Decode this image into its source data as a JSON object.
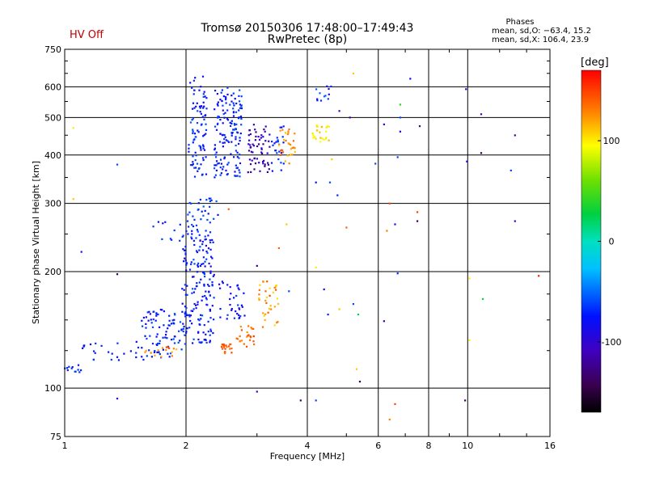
{
  "header": {
    "hv_status": "HV Off",
    "title_line1": "Tromsø 20150306 17:48:00–17:49:43",
    "title_line2": "RwPretec (8p)",
    "phases_heading": "Phases",
    "phases_O": "mean, sd,O: −63.4, 15.2",
    "phases_X": "mean, sd,X: 106.4, 23.9"
  },
  "chart_data": {
    "type": "scatter",
    "title": "Tromsø 20150306 17:48:00–17:49:43",
    "subtitle": "RwPretec (8p)",
    "xlabel": "Frequency [MHz]",
    "ylabel": "Stationary phase Virtual Height [km]",
    "x_scale": "log",
    "y_scale": "log",
    "xlim": [
      1,
      16
    ],
    "ylim": [
      75,
      750
    ],
    "x_ticks": [
      1,
      2,
      4,
      6,
      8,
      10,
      16
    ],
    "y_ticks": [
      75,
      100,
      200,
      300,
      400,
      500,
      600,
      750
    ],
    "color_scale": {
      "label": "[deg]",
      "range": [
        -170,
        170
      ],
      "ticks": [
        100,
        0,
        -100
      ],
      "colormap": "rainbow (black-purple-blue-cyan-green-yellow-red)"
    },
    "clusters": [
      {
        "x_range": [
          2.03,
          2.25
        ],
        "y_range": [
          350,
          640
        ],
        "phase_range": [
          -90,
          -55
        ],
        "count": 90
      },
      {
        "x_range": [
          2.35,
          2.75
        ],
        "y_range": [
          350,
          600
        ],
        "phase_range": [
          -90,
          -55
        ],
        "count": 150
      },
      {
        "x_range": [
          2.85,
          3.25
        ],
        "y_range": [
          360,
          480
        ],
        "phase_range": [
          -130,
          -90
        ],
        "count": 60
      },
      {
        "x_range": [
          3.25,
          3.5
        ],
        "y_range": [
          360,
          480
        ],
        "phase_range": [
          -80,
          -60
        ],
        "count": 25
      },
      {
        "x_range": [
          3.4,
          3.75
        ],
        "y_range": [
          380,
          470
        ],
        "phase_range": [
          110,
          145
        ],
        "count": 30
      },
      {
        "x_range": [
          4.1,
          4.55
        ],
        "y_range": [
          420,
          480
        ],
        "phase_range": [
          90,
          115
        ],
        "count": 25
      },
      {
        "x_range": [
          4.2,
          4.6
        ],
        "y_range": [
          550,
          620
        ],
        "phase_range": [
          -90,
          -50
        ],
        "count": 12
      },
      {
        "x_range": [
          1.0,
          1.1
        ],
        "y_range": [
          110,
          115
        ],
        "phase_range": [
          -80,
          -60
        ],
        "count": 12
      },
      {
        "x_range": [
          1.1,
          1.6
        ],
        "y_range": [
          118,
          132
        ],
        "phase_range": [
          -80,
          -60
        ],
        "count": 25
      },
      {
        "x_range": [
          1.55,
          1.95
        ],
        "y_range": [
          120,
          160
        ],
        "phase_range": [
          -90,
          -55
        ],
        "count": 80
      },
      {
        "x_range": [
          1.95,
          2.35
        ],
        "y_range": [
          130,
          250
        ],
        "phase_range": [
          -90,
          -55
        ],
        "count": 180
      },
      {
        "x_range": [
          2.0,
          2.4
        ],
        "y_range": [
          250,
          310
        ],
        "phase_range": [
          -80,
          -55
        ],
        "count": 40
      },
      {
        "x_range": [
          1.65,
          1.95
        ],
        "y_range": [
          240,
          270
        ],
        "phase_range": [
          -80,
          -60
        ],
        "count": 10
      },
      {
        "x_range": [
          2.4,
          2.8
        ],
        "y_range": [
          150,
          190
        ],
        "phase_range": [
          -100,
          -60
        ],
        "count": 35
      },
      {
        "x_range": [
          2.45,
          2.6
        ],
        "y_range": [
          122,
          130
        ],
        "phase_range": [
          130,
          150
        ],
        "count": 20
      },
      {
        "x_range": [
          2.65,
          2.95
        ],
        "y_range": [
          128,
          145
        ],
        "phase_range": [
          120,
          150
        ],
        "count": 25
      },
      {
        "x_range": [
          3.0,
          3.4
        ],
        "y_range": [
          140,
          190
        ],
        "phase_range": [
          100,
          150
        ],
        "count": 35
      },
      {
        "x_range": [
          1.55,
          1.9
        ],
        "y_range": [
          120,
          128
        ],
        "phase_range": [
          110,
          150
        ],
        "count": 15
      }
    ],
    "scattered_points": [
      {
        "x": 1.05,
        "y": 470,
        "phase": 100
      },
      {
        "x": 1.05,
        "y": 308,
        "phase": 110
      },
      {
        "x": 1.35,
        "y": 378,
        "phase": -60
      },
      {
        "x": 1.35,
        "y": 197,
        "phase": -150
      },
      {
        "x": 1.35,
        "y": 94,
        "phase": -90
      },
      {
        "x": 1.1,
        "y": 225,
        "phase": -80
      },
      {
        "x": 3.0,
        "y": 98,
        "phase": -110
      },
      {
        "x": 3.85,
        "y": 93,
        "phase": -140
      },
      {
        "x": 4.2,
        "y": 93,
        "phase": -60
      },
      {
        "x": 5.3,
        "y": 112,
        "phase": 110
      },
      {
        "x": 5.4,
        "y": 104,
        "phase": -150
      },
      {
        "x": 6.4,
        "y": 83,
        "phase": 130
      },
      {
        "x": 6.6,
        "y": 91,
        "phase": 150
      },
      {
        "x": 9.85,
        "y": 93,
        "phase": -140
      },
      {
        "x": 9.9,
        "y": 592,
        "phase": -100
      },
      {
        "x": 10.8,
        "y": 510,
        "phase": -110
      },
      {
        "x": 13.1,
        "y": 450,
        "phase": -120
      },
      {
        "x": 10.8,
        "y": 405,
        "phase": -150
      },
      {
        "x": 9.95,
        "y": 385,
        "phase": -90
      },
      {
        "x": 12.8,
        "y": 365,
        "phase": -60
      },
      {
        "x": 13.1,
        "y": 270,
        "phase": -110
      },
      {
        "x": 15.0,
        "y": 195,
        "phase": 160
      },
      {
        "x": 10.1,
        "y": 192,
        "phase": 100
      },
      {
        "x": 10.9,
        "y": 170,
        "phase": 30
      },
      {
        "x": 10.1,
        "y": 133,
        "phase": 100
      },
      {
        "x": 7.2,
        "y": 630,
        "phase": -80
      },
      {
        "x": 7.6,
        "y": 475,
        "phase": -120
      },
      {
        "x": 6.8,
        "y": 540,
        "phase": 40
      },
      {
        "x": 6.8,
        "y": 500,
        "phase": -60
      },
      {
        "x": 6.8,
        "y": 460,
        "phase": -90
      },
      {
        "x": 6.7,
        "y": 395,
        "phase": -60
      },
      {
        "x": 6.2,
        "y": 480,
        "phase": -100
      },
      {
        "x": 5.9,
        "y": 380,
        "phase": -60
      },
      {
        "x": 5.2,
        "y": 650,
        "phase": 110
      },
      {
        "x": 5.1,
        "y": 500,
        "phase": -120
      },
      {
        "x": 4.8,
        "y": 520,
        "phase": -100
      },
      {
        "x": 4.55,
        "y": 340,
        "phase": -60
      },
      {
        "x": 4.75,
        "y": 315,
        "phase": -70
      },
      {
        "x": 4.6,
        "y": 390,
        "phase": 110
      },
      {
        "x": 4.2,
        "y": 340,
        "phase": -80
      },
      {
        "x": 4.2,
        "y": 205,
        "phase": 100
      },
      {
        "x": 4.4,
        "y": 180,
        "phase": -80
      },
      {
        "x": 4.5,
        "y": 155,
        "phase": -70
      },
      {
        "x": 4.8,
        "y": 160,
        "phase": 110
      },
      {
        "x": 5.2,
        "y": 165,
        "phase": -60
      },
      {
        "x": 5.35,
        "y": 155,
        "phase": 30
      },
      {
        "x": 5.0,
        "y": 260,
        "phase": 140
      },
      {
        "x": 6.2,
        "y": 149,
        "phase": -120
      },
      {
        "x": 6.3,
        "y": 255,
        "phase": 130
      },
      {
        "x": 6.4,
        "y": 300,
        "phase": 150
      },
      {
        "x": 6.6,
        "y": 265,
        "phase": -80
      },
      {
        "x": 6.7,
        "y": 198,
        "phase": -70
      },
      {
        "x": 7.5,
        "y": 285,
        "phase": 150
      },
      {
        "x": 7.5,
        "y": 270,
        "phase": -140
      },
      {
        "x": 3.55,
        "y": 265,
        "phase": 110
      },
      {
        "x": 2.55,
        "y": 290,
        "phase": 140
      },
      {
        "x": 3.0,
        "y": 207,
        "phase": -120
      },
      {
        "x": 3.4,
        "y": 230,
        "phase": 140
      },
      {
        "x": 3.6,
        "y": 178,
        "phase": -60
      }
    ]
  }
}
